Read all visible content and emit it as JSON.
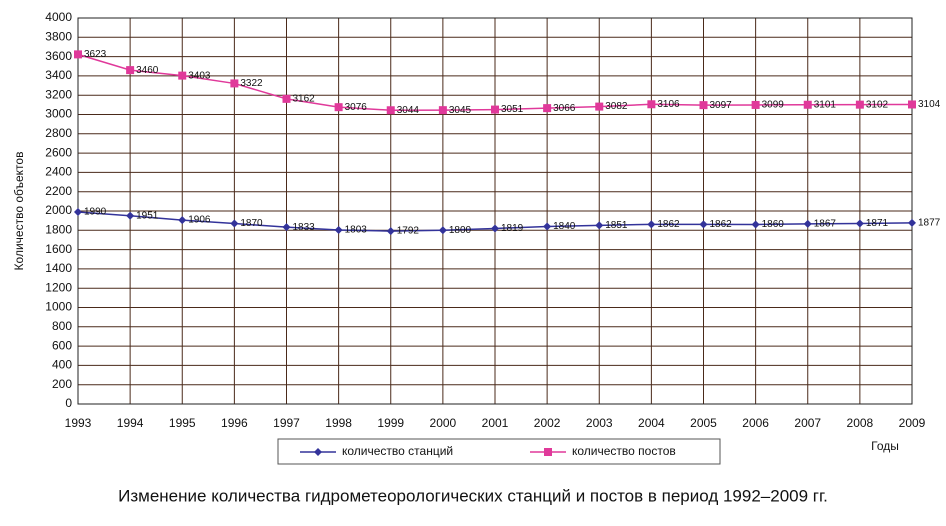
{
  "chart_data": {
    "type": "line",
    "y_label": "Количество объектов",
    "x_label": "Годы",
    "caption": "Изменение количества гидрометеорологических станций и постов в период 1992–2009 гг.",
    "categories": [
      "1993",
      "1994",
      "1995",
      "1996",
      "1997",
      "1998",
      "1999",
      "2000",
      "2001",
      "2002",
      "2003",
      "2004",
      "2005",
      "2006",
      "2007",
      "2008",
      "2009"
    ],
    "series": [
      {
        "name": "количество станций",
        "color": "#33339a",
        "marker": "diamond",
        "values": [
          1990,
          1951,
          1906,
          1870,
          1833,
          1803,
          1792,
          1800,
          1819,
          1840,
          1851,
          1862,
          1862,
          1860,
          1867,
          1871,
          1877
        ]
      },
      {
        "name": "количество постов",
        "color": "#e0399a",
        "marker": "square",
        "values": [
          3623,
          3460,
          3403,
          3322,
          3162,
          3076,
          3044,
          3045,
          3051,
          3066,
          3082,
          3106,
          3097,
          3099,
          3101,
          3102,
          3104
        ]
      }
    ],
    "ylim": [
      0,
      4000
    ],
    "yticks": [
      0,
      200,
      400,
      600,
      800,
      1000,
      1200,
      1400,
      1600,
      1800,
      2000,
      2200,
      2400,
      2600,
      2800,
      3000,
      3200,
      3400,
      3600,
      3800,
      4000
    ],
    "grid": true,
    "legend": "bottom"
  }
}
